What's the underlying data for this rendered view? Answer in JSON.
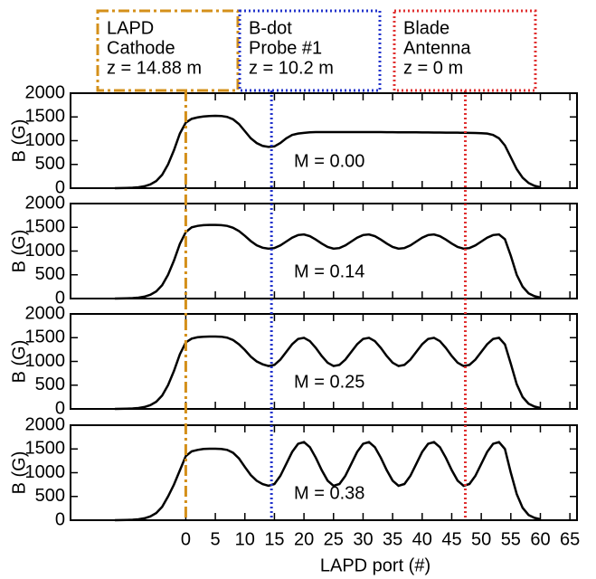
{
  "chart_data": {
    "type": "line",
    "x": [
      -12,
      -11,
      -10,
      -9,
      -8,
      -7,
      -6,
      -5,
      -4,
      -3,
      -2,
      -1,
      0,
      1,
      2,
      3,
      4,
      5,
      6,
      7,
      8,
      9,
      10,
      11,
      12,
      13,
      14,
      15,
      16,
      17,
      18,
      19,
      20,
      21,
      22,
      23,
      24,
      25,
      26,
      27,
      28,
      29,
      30,
      31,
      32,
      33,
      34,
      35,
      36,
      37,
      38,
      39,
      40,
      41,
      42,
      43,
      44,
      45,
      46,
      47,
      48,
      49,
      50,
      51,
      52,
      53,
      54,
      55,
      56,
      57,
      58,
      59,
      60
    ],
    "xlim": [
      -19.5,
      66.2
    ],
    "xticks": [
      0,
      5,
      10,
      15,
      20,
      25,
      30,
      35,
      40,
      45,
      50,
      55,
      60,
      65
    ],
    "xlabel": "LAPD port (#)",
    "ylim": [
      0,
      2000
    ],
    "yticks": [
      0,
      500,
      1000,
      1500,
      2000
    ],
    "ylabel": "B (G)",
    "series": [
      {
        "name": "M = 0.00",
        "color": "#000000",
        "values": [
          0,
          2,
          5,
          10,
          20,
          40,
          80,
          150,
          280,
          500,
          800,
          1150,
          1380,
          1460,
          1490,
          1510,
          1520,
          1525,
          1520,
          1500,
          1450,
          1350,
          1200,
          1050,
          950,
          890,
          870,
          880,
          950,
          1050,
          1120,
          1150,
          1165,
          1175,
          1180,
          1180,
          1180,
          1180,
          1180,
          1180,
          1180,
          1180,
          1180,
          1180,
          1180,
          1180,
          1178,
          1178,
          1176,
          1176,
          1175,
          1175,
          1174,
          1174,
          1172,
          1172,
          1170,
          1170,
          1168,
          1166,
          1165,
          1162,
          1158,
          1150,
          1120,
          1050,
          900,
          650,
          400,
          220,
          110,
          50,
          20
        ]
      },
      {
        "name": "M = 0.14",
        "color": "#000000",
        "values": [
          0,
          2,
          5,
          10,
          20,
          40,
          80,
          150,
          280,
          500,
          800,
          1150,
          1400,
          1500,
          1530,
          1545,
          1550,
          1550,
          1545,
          1530,
          1490,
          1420,
          1320,
          1210,
          1120,
          1070,
          1051,
          1063,
          1119,
          1200,
          1281,
          1337,
          1349,
          1313,
          1242,
          1158,
          1087,
          1051,
          1063,
          1119,
          1200,
          1281,
          1337,
          1349,
          1313,
          1242,
          1158,
          1087,
          1051,
          1063,
          1119,
          1200,
          1281,
          1337,
          1349,
          1313,
          1242,
          1158,
          1087,
          1051,
          1063,
          1119,
          1200,
          1281,
          1337,
          1349,
          1250,
          900,
          500,
          250,
          110,
          50,
          20
        ]
      },
      {
        "name": "M = 0.25",
        "color": "#000000",
        "values": [
          0,
          2,
          5,
          10,
          20,
          40,
          80,
          150,
          280,
          500,
          800,
          1150,
          1400,
          1480,
          1510,
          1520,
          1525,
          1525,
          1520,
          1500,
          1450,
          1360,
          1240,
          1100,
          1000,
          940,
          903,
          927,
          1038,
          1200,
          1362,
          1473,
          1497,
          1427,
          1285,
          1115,
          973,
          903,
          927,
          1038,
          1200,
          1362,
          1473,
          1497,
          1427,
          1285,
          1115,
          973,
          903,
          927,
          1038,
          1200,
          1362,
          1473,
          1497,
          1427,
          1285,
          1115,
          973,
          903,
          927,
          1038,
          1200,
          1362,
          1473,
          1497,
          1360,
          950,
          520,
          250,
          110,
          50,
          20
        ]
      },
      {
        "name": "M = 0.38",
        "color": "#000000",
        "values": [
          0,
          2,
          5,
          10,
          20,
          40,
          80,
          150,
          280,
          500,
          750,
          1050,
          1350,
          1450,
          1480,
          1500,
          1505,
          1505,
          1500,
          1480,
          1420,
          1300,
          1120,
          950,
          830,
          760,
          725,
          762,
          933,
          1185,
          1437,
          1608,
          1645,
          1537,
          1316,
          1054,
          833,
          725,
          762,
          933,
          1185,
          1437,
          1608,
          1645,
          1537,
          1316,
          1054,
          833,
          725,
          762,
          933,
          1185,
          1437,
          1608,
          1645,
          1537,
          1316,
          1054,
          833,
          725,
          762,
          933,
          1185,
          1437,
          1608,
          1645,
          1500,
          1000,
          550,
          260,
          110,
          50,
          20
        ]
      }
    ],
    "markers": [
      {
        "lines": [
          "LAPD",
          "Cathode",
          "z = 14.88 m"
        ],
        "x": 0,
        "color": "#d4901a",
        "style": "dashdot"
      },
      {
        "lines": [
          "B-dot",
          "Probe #1",
          "z = 10.2 m"
        ],
        "x": 14.5,
        "color": "#2233cc",
        "style": "dotted"
      },
      {
        "lines": [
          "Blade",
          "Antenna",
          "z = 0 m"
        ],
        "x": 47.3,
        "color": "#e03030",
        "style": "dotted"
      }
    ]
  }
}
